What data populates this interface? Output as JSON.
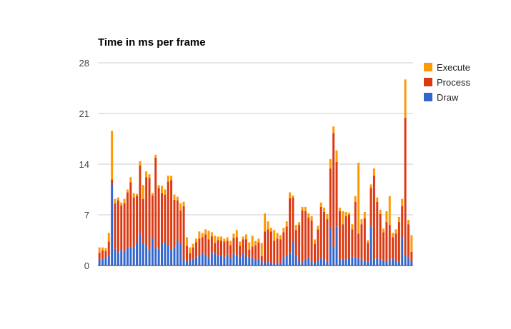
{
  "chart_data": {
    "type": "bar",
    "stacked": true,
    "title": "Time in ms per frame",
    "xlabel": "",
    "ylabel": "",
    "ylim": [
      0,
      28
    ],
    "yticks": [
      "0",
      "7",
      "14",
      "21",
      "28"
    ],
    "grid": true,
    "legend_position": "right",
    "series": [
      {
        "name": "Draw",
        "color": "#3366cc",
        "values": [
          0.9,
          0.8,
          1.1,
          1.4,
          11.2,
          2.3,
          1.8,
          2.1,
          2.0,
          2.4,
          2.6,
          2.5,
          3.2,
          4.4,
          3.0,
          2.8,
          2.2,
          3.8,
          2.5,
          2.3,
          3.0,
          3.2,
          2.8,
          2.2,
          2.5,
          3.4,
          3.0,
          0.8,
          0.5,
          0.7,
          0.9,
          1.2,
          1.4,
          1.7,
          1.5,
          1.1,
          1.8,
          1.6,
          1.3,
          1.4,
          1.2,
          1.5,
          1.0,
          1.6,
          1.4,
          1.2,
          1.7,
          1.3,
          1.0,
          1.1,
          0.8,
          0.9,
          0.5,
          0.4,
          0.6,
          0.4,
          0.3,
          0.3,
          0.4,
          1.0,
          1.4,
          1.6,
          3.3,
          1.3,
          0.7,
          0.4,
          0.9,
          1.1,
          0.6,
          0.4,
          0.7,
          1.0,
          0.8,
          0.5,
          5.3,
          2.6,
          5.4,
          0.8,
          0.9,
          0.8,
          1.0,
          1.2,
          1.1,
          1.0,
          0.9,
          0.6,
          0.5,
          5.4,
          0.8,
          1.0,
          0.8,
          0.7,
          0.6,
          0.7,
          1.0,
          0.6,
          0.5,
          3.9,
          1.3,
          1.1,
          0.5
        ],
        "data_labels": []
      },
      {
        "name": "Process",
        "color": "#dc3912",
        "values": [
          0.9,
          1.3,
          0.9,
          1.9,
          0.7,
          6.3,
          7.2,
          6.2,
          6.6,
          7.7,
          8.9,
          6.9,
          6.4,
          9.4,
          6.2,
          9.4,
          9.9,
          5.9,
          12.4,
          8.4,
          7.0,
          6.6,
          8.8,
          9.6,
          6.6,
          5.6,
          4.6,
          7.4,
          2.2,
          1.0,
          1.6,
          2.0,
          2.3,
          2.2,
          2.8,
          2.5,
          2.2,
          1.5,
          2.2,
          2.0,
          2.1,
          1.9,
          1.8,
          2.2,
          2.5,
          1.5,
          1.9,
          2.3,
          1.2,
          1.5,
          2.0,
          2.3,
          0.8,
          4.3,
          4.4,
          4.3,
          3.1,
          3.4,
          3.2,
          3.6,
          4.0,
          7.7,
          6.1,
          3.6,
          4.9,
          7.2,
          6.6,
          5.5,
          5.6,
          2.6,
          4.3,
          7.1,
          6.6,
          5.9,
          8.1,
          15.7,
          8.9,
          6.7,
          4.8,
          6.0,
          6.0,
          3.8,
          7.7,
          3.4,
          4.8,
          5.9,
          2.6,
          5.3,
          11.6,
          7.8,
          6.3,
          3.9,
          5.4,
          4.9,
          2.9,
          3.8,
          5.5,
          4.3,
          19.1,
          4.6,
          1.4
        ],
        "data_labels": []
      },
      {
        "name": "Execute",
        "color": "#ff9900",
        "values": [
          0.7,
          0.4,
          0.4,
          1.2,
          6.7,
          0.6,
          0.4,
          0.4,
          0.6,
          0.4,
          0.7,
          0.6,
          0.3,
          0.6,
          1.9,
          0.8,
          0.5,
          0.3,
          0.4,
          0.4,
          1.0,
          0.7,
          0.8,
          0.6,
          0.7,
          0.5,
          1.0,
          0.6,
          1.2,
          0.8,
          0.5,
          0.5,
          1.0,
          0.6,
          0.7,
          1.2,
          0.6,
          1.0,
          0.5,
          0.6,
          0.4,
          0.5,
          0.6,
          0.6,
          1.0,
          0.6,
          0.4,
          0.7,
          1.0,
          1.5,
          0.6,
          0.5,
          1.8,
          2.5,
          1.1,
          0.5,
          1.5,
          0.8,
          0.6,
          0.6,
          0.7,
          0.8,
          0.3,
          0.7,
          0.4,
          0.5,
          0.6,
          0.6,
          0.6,
          0.6,
          0.5,
          0.6,
          0.6,
          0.7,
          1.3,
          0.9,
          1.6,
          0.5,
          1.8,
          0.6,
          0.3,
          0.7,
          0.8,
          9.8,
          0.7,
          0.9,
          0.4,
          0.5,
          1.0,
          0.6,
          0.6,
          0.5,
          1.5,
          4.0,
          0.6,
          0.6,
          0.7,
          1.0,
          5.3,
          0.6,
          2.3
        ],
        "data_labels": []
      }
    ]
  }
}
